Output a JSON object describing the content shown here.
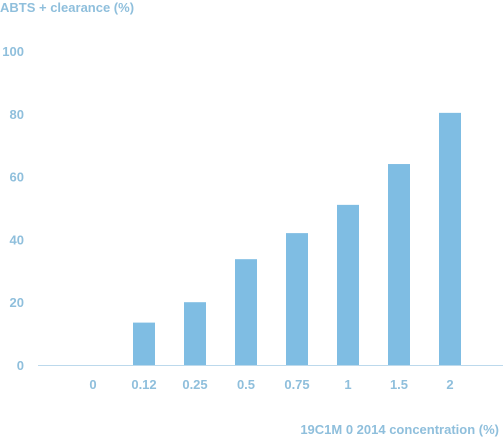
{
  "chart_data": {
    "type": "bar",
    "ylabel": "ABTS + clearance (%)",
    "xlabel": "19C1M 0 2014 concentration (%)",
    "categories": [
      "0",
      "0.12",
      "0.25",
      "0.5",
      "0.75",
      "1",
      "1.5",
      "2"
    ],
    "values": [
      0,
      13.5,
      20,
      33.7,
      42,
      51,
      64,
      80.3
    ],
    "yticks": [
      0,
      20,
      40,
      60,
      80,
      100
    ],
    "ylim": [
      0,
      100
    ],
    "grid": false,
    "colors": {
      "bar": "#7fbde3",
      "axis": "#bcd9ec",
      "text": "#8fbfdc"
    }
  }
}
